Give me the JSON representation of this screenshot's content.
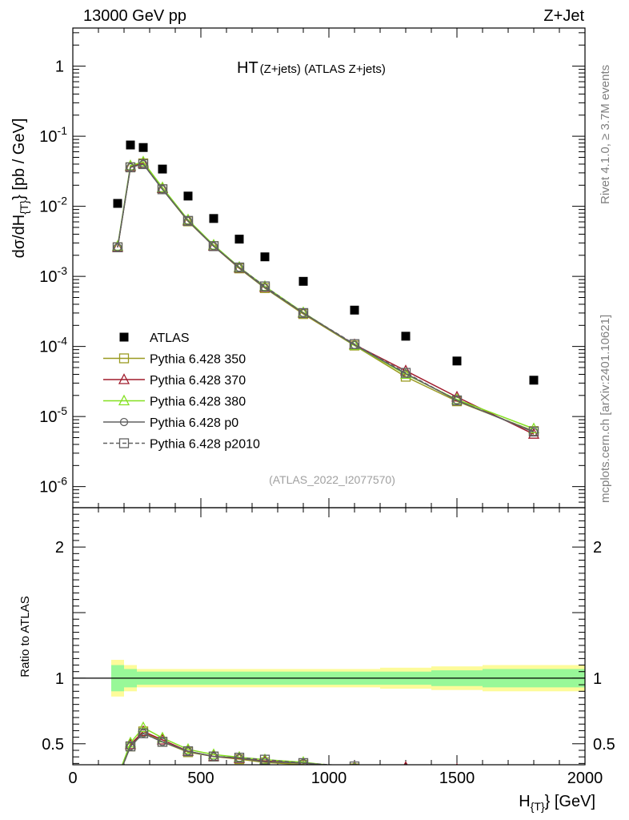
{
  "header": {
    "left": "13000 GeV pp",
    "right": "Z+Jet"
  },
  "side": {
    "rivet": "Rivet 4.1.0, ≥ 3.7M events",
    "mcplots": "mcplots.cern.ch [arXiv:2401.10621]"
  },
  "chart_data": {
    "type": "line",
    "title_main": "HT",
    "title_sub": "(Z+jets) (ATLAS Z+jets)",
    "watermark": "(ATLAS_2022_I2077570)",
    "ylabel": "dσ/dH{T} [pb / GeV]",
    "ylabel_parts": [
      "dσ/dH",
      "{T}",
      "} [pb / GeV]"
    ],
    "xlabel_parts": [
      "H",
      "{T}",
      "} [GeV]"
    ],
    "ratio_ylabel": "Ratio to ATLAS",
    "xlim": [
      0,
      2000
    ],
    "ylim_log": [
      5e-07,
      3.5
    ],
    "ratio_ylim": [
      0.34,
      2.3
    ],
    "x_ticks": [
      "0",
      "500",
      "1000",
      "1500",
      "2000"
    ],
    "y_ticks": [
      "10^-6",
      "10^-5",
      "10^-4",
      "10^-3",
      "10^-2",
      "10^-1",
      "1"
    ],
    "ratio_ticks": [
      "0.5",
      "1",
      "2"
    ],
    "x": [
      175,
      225,
      275,
      350,
      450,
      550,
      650,
      750,
      900,
      1100,
      1300,
      1500,
      1800
    ],
    "band_edges": [
      150,
      200,
      250,
      300,
      400,
      500,
      600,
      700,
      800,
      1000,
      1200,
      1400,
      1600,
      2000
    ],
    "band_inner": [
      0.1,
      0.07,
      0.05,
      0.05,
      0.05,
      0.05,
      0.05,
      0.05,
      0.05,
      0.05,
      0.05,
      0.06,
      0.07
    ],
    "band_outer": [
      0.14,
      0.1,
      0.07,
      0.07,
      0.07,
      0.07,
      0.07,
      0.07,
      0.07,
      0.07,
      0.08,
      0.09,
      0.1
    ],
    "data": {
      "name": "ATLAS",
      "values": [
        0.011,
        0.075,
        0.069,
        0.034,
        0.014,
        0.0067,
        0.0034,
        0.0019,
        0.00085,
        0.00033,
        0.00014,
        6.2e-05,
        3.3e-05
      ]
    },
    "series": [
      {
        "name": "Pythia 6.428 350",
        "color": "#9a9a20",
        "marker": "square",
        "dashed": false,
        "values": [
          0.0026,
          0.036,
          0.041,
          0.0175,
          0.0061,
          0.0027,
          0.0013,
          0.00068,
          0.00029,
          0.000103,
          3.7e-05,
          1.65e-05,
          6.2e-06
        ]
      },
      {
        "name": "Pythia 6.428 370",
        "color": "#a01c2c",
        "marker": "triangle",
        "dashed": false,
        "values": [
          0.0026,
          0.037,
          0.041,
          0.018,
          0.0062,
          0.0027,
          0.00132,
          0.0007,
          0.0003,
          0.000106,
          4.5e-05,
          1.9e-05,
          5.6e-06
        ]
      },
      {
        "name": "Pythia 6.428 380",
        "color": "#84e020",
        "marker": "triangle",
        "dashed": false,
        "values": [
          0.0027,
          0.038,
          0.043,
          0.0185,
          0.0064,
          0.0028,
          0.00135,
          0.00072,
          0.000305,
          0.000104,
          4e-05,
          1.75e-05,
          6.7e-06
        ]
      },
      {
        "name": "Pythia 6.428 p0",
        "color": "#606060",
        "marker": "circle",
        "dashed": false,
        "values": [
          0.0026,
          0.036,
          0.04,
          0.0175,
          0.0062,
          0.0027,
          0.00133,
          0.00069,
          0.0003,
          0.000105,
          4.1e-05,
          1.7e-05,
          6e-06
        ]
      },
      {
        "name": "Pythia 6.428 p2010",
        "color": "#606060",
        "marker": "square",
        "dashed": true,
        "values": [
          0.0026,
          0.036,
          0.04,
          0.0175,
          0.0062,
          0.0027,
          0.00134,
          0.00072,
          0.0003,
          0.000108,
          4.2e-05,
          1.7e-05,
          6.1e-06
        ]
      }
    ]
  }
}
